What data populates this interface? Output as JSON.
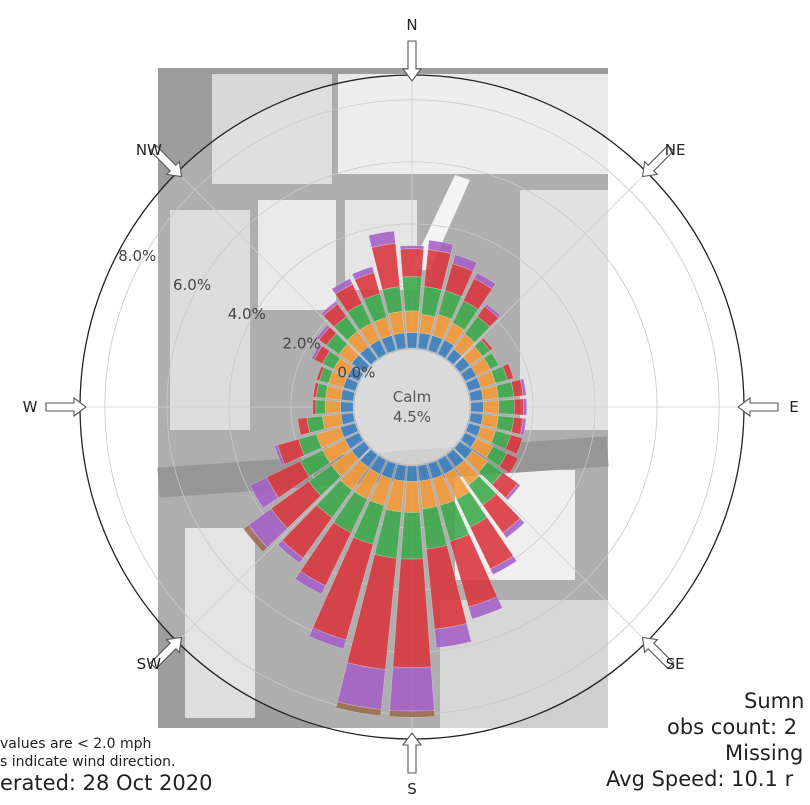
{
  "chart_data": {
    "type": "windrose",
    "directions": [
      "N",
      "NE",
      "E",
      "SE",
      "S",
      "SW",
      "W",
      "NW"
    ],
    "radial_ticks": [
      "0.0%",
      "2.0%",
      "4.0%",
      "6.0%",
      "8.0%"
    ],
    "radial_values": [
      0,
      2,
      4,
      6,
      8
    ],
    "radial_max": 8.8,
    "calm_label": "Calm",
    "calm_value": "4.5%",
    "speed_bins_colors": [
      "#3a7fc1",
      "#f59a35",
      "#3ca94a",
      "#d8343b",
      "#a460c6",
      "#9a6a4f"
    ],
    "bin_sectors": 36,
    "sectors_deg": [
      0,
      10,
      20,
      30,
      40,
      50,
      60,
      70,
      80,
      90,
      100,
      110,
      120,
      130,
      140,
      150,
      160,
      170,
      180,
      190,
      200,
      210,
      220,
      230,
      240,
      250,
      260,
      270,
      280,
      290,
      300,
      310,
      320,
      330,
      340,
      350
    ],
    "sector_bins": [
      [
        0.5,
        0.7,
        1.1,
        0.9,
        0.1,
        0.0
      ],
      [
        0.5,
        0.6,
        0.9,
        1.2,
        0.3,
        0.0
      ],
      [
        0.5,
        0.7,
        0.8,
        0.9,
        0.3,
        0.0
      ],
      [
        0.5,
        0.6,
        0.8,
        0.8,
        0.2,
        0.0
      ],
      [
        0.4,
        0.6,
        0.7,
        0.4,
        0.1,
        0.0
      ],
      [
        0.4,
        0.5,
        0.3,
        0.1,
        0.0,
        0.0
      ],
      [
        0.4,
        0.5,
        0.3,
        0.0,
        0.0,
        0.0
      ],
      [
        0.4,
        0.5,
        0.4,
        0.2,
        0.0,
        0.0
      ],
      [
        0.4,
        0.5,
        0.5,
        0.3,
        0.1,
        0.0
      ],
      [
        0.4,
        0.5,
        0.5,
        0.3,
        0.1,
        0.0
      ],
      [
        0.4,
        0.5,
        0.5,
        0.3,
        0.1,
        0.0
      ],
      [
        0.4,
        0.5,
        0.5,
        0.4,
        0.0,
        0.0
      ],
      [
        0.4,
        0.6,
        0.5,
        0.4,
        0.0,
        0.0
      ],
      [
        0.5,
        0.6,
        0.6,
        0.6,
        0.1,
        0.0
      ],
      [
        0.5,
        0.7,
        0.8,
        1.1,
        0.2,
        0.0
      ],
      [
        0.5,
        0.9,
        1.0,
        1.5,
        0.2,
        0.0
      ],
      [
        0.5,
        0.9,
        1.2,
        2.2,
        0.4,
        0.0
      ],
      [
        0.5,
        0.9,
        1.3,
        2.6,
        0.6,
        0.0
      ],
      [
        0.5,
        1.0,
        1.5,
        3.5,
        1.4,
        0.2
      ],
      [
        0.5,
        1.0,
        1.5,
        3.6,
        1.3,
        0.2
      ],
      [
        0.5,
        0.9,
        1.3,
        3.2,
        0.3,
        0.0
      ],
      [
        0.5,
        0.9,
        1.2,
        1.9,
        0.3,
        0.0
      ],
      [
        0.5,
        0.9,
        1.1,
        1.6,
        0.2,
        0.0
      ],
      [
        0.5,
        0.8,
        0.9,
        1.5,
        0.9,
        0.2
      ],
      [
        0.5,
        0.8,
        0.8,
        1.2,
        0.6,
        0.0
      ],
      [
        0.5,
        0.8,
        0.6,
        0.7,
        0.1,
        0.0
      ],
      [
        0.4,
        0.6,
        0.5,
        0.3,
        0.0,
        0.0
      ],
      [
        0.4,
        0.5,
        0.3,
        0.1,
        0.0,
        0.0
      ],
      [
        0.4,
        0.5,
        0.3,
        0.1,
        0.0,
        0.0
      ],
      [
        0.4,
        0.5,
        0.3,
        0.1,
        0.0,
        0.0
      ],
      [
        0.4,
        0.5,
        0.4,
        0.3,
        0.1,
        0.0
      ],
      [
        0.5,
        0.5,
        0.5,
        0.3,
        0.1,
        0.0
      ],
      [
        0.5,
        0.6,
        0.6,
        0.5,
        0.1,
        0.0
      ],
      [
        0.5,
        0.6,
        0.7,
        0.7,
        0.2,
        0.0
      ],
      [
        0.5,
        0.6,
        0.8,
        0.7,
        0.2,
        0.0
      ],
      [
        0.5,
        0.7,
        0.8,
        1.4,
        0.4,
        0.0
      ]
    ]
  },
  "notes": {
    "values_note": "values are < 2.0 mph",
    "arrows_note": "s indicate wind direction.",
    "generated": "erated: 28 Oct 2020",
    "summary_title": "Sumn",
    "obs_count": "obs count: 2",
    "missing": "Missing",
    "avg_speed": "Avg Speed: 10.1 r"
  }
}
